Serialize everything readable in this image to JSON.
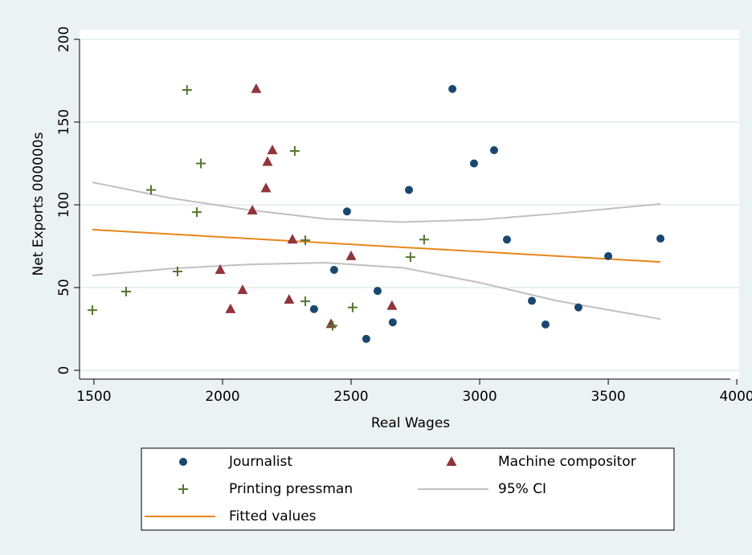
{
  "chart_data": {
    "type": "scatter",
    "x_label": "Real Wages",
    "y_label": "Net Exports 000000s",
    "xlim": [
      1444,
      4009
    ],
    "xticks": [
      1500,
      2000,
      2500,
      3000,
      3500,
      4000
    ],
    "ylim": [
      -5.3,
      205.8
    ],
    "yticks": [
      0,
      50,
      100,
      150,
      200
    ],
    "grid": true,
    "series": [
      {
        "name": "Journalist",
        "kind": "scatter",
        "marker": "circle",
        "color": "#1a476f",
        "x": [
          2894,
          2978,
          3056,
          2725,
          3106,
          2484,
          2434,
          2603,
          2356,
          2559,
          2662,
          3203,
          3256,
          3384,
          3500,
          3703
        ],
        "values": [
          170,
          125,
          133,
          109,
          79,
          96,
          60.7,
          48,
          37,
          19,
          29,
          42,
          27.7,
          38,
          69,
          79.6
        ]
      },
      {
        "name": "Machine compositor",
        "kind": "scatter",
        "marker": "triangle",
        "color": "#90353b",
        "x": [
          2131,
          2194,
          2175,
          2169,
          2116,
          2272,
          1991,
          2078,
          2031,
          2259,
          2422,
          2500,
          2659
        ],
        "values": [
          170,
          133,
          126,
          110,
          96.6,
          79,
          60.7,
          48.5,
          37,
          42.7,
          28,
          69,
          39
        ]
      },
      {
        "name": "Printing pressman",
        "kind": "scatter",
        "marker": "plus",
        "color": "#55752f",
        "x": [
          1862,
          1916,
          2281,
          1722,
          1900,
          1825,
          1625,
          1494,
          2322,
          2322,
          2428,
          2506,
          2731,
          2784
        ],
        "values": [
          169.4,
          125,
          132.5,
          109,
          95.6,
          59.7,
          47.6,
          36.4,
          78.6,
          41.7,
          27,
          38,
          68.4,
          79
        ]
      },
      {
        "name": "95% CI",
        "kind": "ci",
        "color": "#c0c0c0",
        "x": [
          1494,
          1800,
          2100,
          2400,
          2700,
          3000,
          3300,
          3703
        ],
        "upper": [
          113.6,
          104,
          97,
          91.5,
          89.6,
          91,
          94.7,
          100.5
        ],
        "lower": [
          57.3,
          61.5,
          64,
          65,
          62,
          53,
          42,
          31
        ]
      },
      {
        "name": "Fitted values",
        "kind": "line",
        "color": "#e8861a",
        "x": [
          1494,
          3703
        ],
        "values": [
          85,
          65.5
        ]
      }
    ]
  }
}
